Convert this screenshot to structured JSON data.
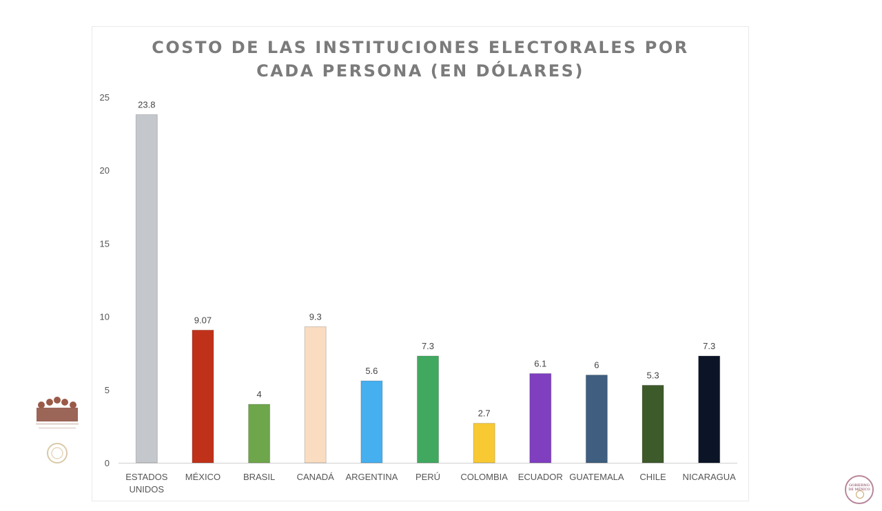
{
  "chart_data": {
    "type": "bar",
    "title_lines": [
      "COSTO DE LAS INSTITUCIONES ELECTORALES POR",
      "CADA PERSONA (EN DÓLARES)"
    ],
    "xlabel": "",
    "ylabel": "",
    "ylim": [
      0,
      25
    ],
    "yticks": [
      0,
      5,
      10,
      15,
      20,
      25
    ],
    "grid": false,
    "legend": "none",
    "categories": [
      [
        "ESTADOS",
        "UNIDOS"
      ],
      [
        "MÉXICO"
      ],
      [
        "BRASIL"
      ],
      [
        "CANADÁ"
      ],
      [
        "ARGENTINA"
      ],
      [
        "PERÚ"
      ],
      [
        "COLOMBIA"
      ],
      [
        "ECUADOR"
      ],
      [
        "GUATEMALA"
      ],
      [
        "CHILE"
      ],
      [
        "NICARAGUA"
      ]
    ],
    "values": [
      23.8,
      9.07,
      4,
      9.3,
      5.6,
      7.3,
      2.7,
      6.1,
      6,
      5.3,
      7.3
    ],
    "value_labels": [
      "23.8",
      "9.07",
      "4",
      "9.3",
      "5.6",
      "7.3",
      "2.7",
      "6.1",
      "6",
      "5.3",
      "7.3"
    ],
    "colors": [
      "#c4c7cc",
      "#c0311a",
      "#6ea64b",
      "#fadcc0",
      "#45aff0",
      "#41a85f",
      "#f9c934",
      "#7f3fbf",
      "#3f5e80",
      "#3d5a2a",
      "#0c1428"
    ]
  },
  "branding": {
    "right_logo_text": "GOBIERNO DE MÉXICO"
  }
}
